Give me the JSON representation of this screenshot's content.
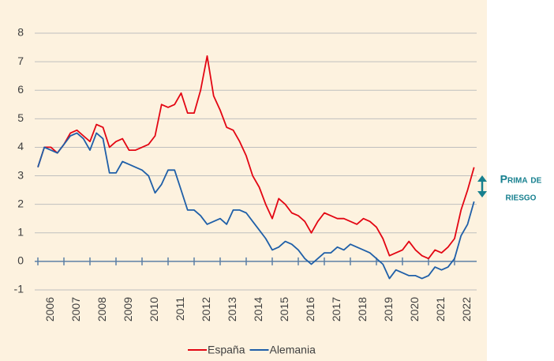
{
  "chart_data": {
    "type": "line",
    "x": [
      2006.0,
      2006.25,
      2006.5,
      2006.75,
      2007.0,
      2007.25,
      2007.5,
      2007.75,
      2008.0,
      2008.25,
      2008.5,
      2008.75,
      2009.0,
      2009.25,
      2009.5,
      2009.75,
      2010.0,
      2010.25,
      2010.5,
      2010.75,
      2011.0,
      2011.25,
      2011.5,
      2011.75,
      2012.0,
      2012.25,
      2012.5,
      2012.75,
      2013.0,
      2013.25,
      2013.5,
      2013.75,
      2014.0,
      2014.25,
      2014.5,
      2014.75,
      2015.0,
      2015.25,
      2015.5,
      2015.75,
      2016.0,
      2016.25,
      2016.5,
      2016.75,
      2017.0,
      2017.25,
      2017.5,
      2017.75,
      2018.0,
      2018.25,
      2018.5,
      2018.75,
      2019.0,
      2019.25,
      2019.5,
      2019.75,
      2020.0,
      2020.25,
      2020.5,
      2020.75,
      2021.0,
      2021.25,
      2021.5,
      2021.75,
      2022.0,
      2022.25,
      2022.5,
      2022.75
    ],
    "series": [
      {
        "name": "España",
        "color": "#e30613",
        "values": [
          3.3,
          4.0,
          4.0,
          3.8,
          4.1,
          4.5,
          4.6,
          4.4,
          4.2,
          4.8,
          4.7,
          4.0,
          4.2,
          4.3,
          3.9,
          3.9,
          4.0,
          4.1,
          4.4,
          5.5,
          5.4,
          5.5,
          5.9,
          5.2,
          5.2,
          6.0,
          7.2,
          5.8,
          5.3,
          4.7,
          4.6,
          4.2,
          3.7,
          3.0,
          2.6,
          2.0,
          1.5,
          2.2,
          2.0,
          1.7,
          1.6,
          1.4,
          1.0,
          1.4,
          1.7,
          1.6,
          1.5,
          1.5,
          1.4,
          1.3,
          1.5,
          1.4,
          1.2,
          0.8,
          0.2,
          0.3,
          0.4,
          0.7,
          0.4,
          0.2,
          0.1,
          0.4,
          0.3,
          0.5,
          0.8,
          1.8,
          2.5,
          3.3
        ]
      },
      {
        "name": "Alemania",
        "color": "#1f5fa8",
        "values": [
          3.3,
          4.0,
          3.9,
          3.8,
          4.1,
          4.4,
          4.5,
          4.3,
          3.9,
          4.5,
          4.3,
          3.1,
          3.1,
          3.5,
          3.4,
          3.3,
          3.2,
          3.0,
          2.4,
          2.7,
          3.2,
          3.2,
          2.5,
          1.8,
          1.8,
          1.6,
          1.3,
          1.4,
          1.5,
          1.3,
          1.8,
          1.8,
          1.7,
          1.4,
          1.1,
          0.8,
          0.4,
          0.5,
          0.7,
          0.6,
          0.4,
          0.1,
          -0.1,
          0.1,
          0.3,
          0.3,
          0.5,
          0.4,
          0.6,
          0.5,
          0.4,
          0.3,
          0.1,
          -0.1,
          -0.6,
          -0.3,
          -0.4,
          -0.5,
          -0.5,
          -0.6,
          -0.5,
          -0.2,
          -0.3,
          -0.2,
          0.1,
          0.9,
          1.3,
          2.1
        ]
      }
    ],
    "xlim": [
      2006,
      2022.85
    ],
    "xticks": [
      2006,
      2007,
      2008,
      2009,
      2010,
      2011,
      2012,
      2013,
      2014,
      2015,
      2016,
      2017,
      2018,
      2019,
      2020,
      2021,
      2022
    ],
    "ylim": [
      -1,
      8
    ],
    "yticks": [
      -1,
      0,
      1,
      2,
      3,
      4,
      5,
      6,
      7,
      8
    ],
    "grid": true,
    "legend": "bottom",
    "annotation": [
      "Prima de",
      "riesgo"
    ]
  }
}
